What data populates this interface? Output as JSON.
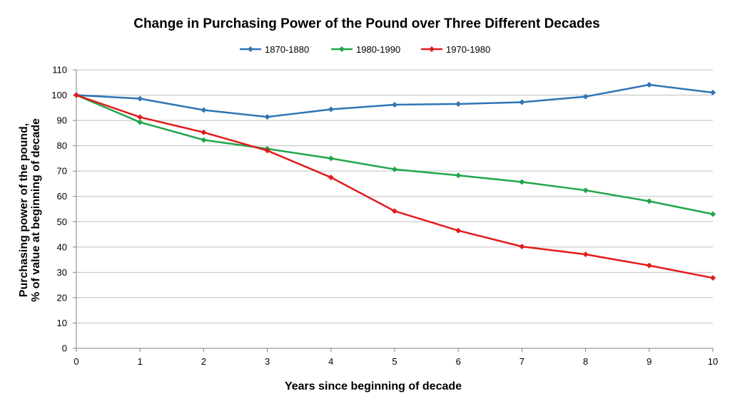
{
  "chart_data": {
    "type": "line",
    "title": "Change in Purchasing Power of the Pound over Three Different Decades",
    "xlabel": "Years since beginning of decade",
    "ylabel": [
      "Purchasing power of the pound,",
      "% of value at beginning of decade"
    ],
    "x": [
      0,
      1,
      2,
      3,
      4,
      5,
      6,
      7,
      8,
      9,
      10
    ],
    "xlim": [
      0,
      10
    ],
    "ylim": [
      0,
      110
    ],
    "yticks": [
      0,
      10,
      20,
      30,
      40,
      50,
      60,
      70,
      80,
      90,
      100,
      110
    ],
    "grid": "horizontal",
    "legend_position": "top",
    "series": [
      {
        "name": "1870-1880",
        "color": "#2e75b6",
        "values": [
          100,
          98.6,
          94.1,
          91.4,
          94.4,
          96.2,
          96.5,
          97.2,
          99.4,
          104.1,
          101
        ]
      },
      {
        "name": "1980-1990",
        "color": "#1fa64a",
        "values": [
          100,
          89.3,
          82.3,
          78.8,
          75,
          70.7,
          68.3,
          65.7,
          62.4,
          58.1,
          53
        ]
      },
      {
        "name": "1970-1980",
        "color": "#e31b1b",
        "values": [
          100,
          91.3,
          85.3,
          78.1,
          67.5,
          54.2,
          46.5,
          40.2,
          37.1,
          32.7,
          27.8
        ]
      }
    ]
  }
}
